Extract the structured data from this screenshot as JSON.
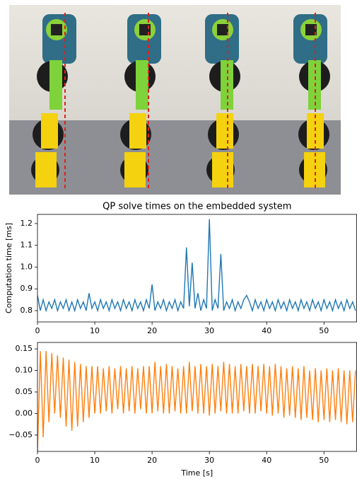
{
  "chart_data": [
    {
      "type": "line",
      "title": "QP solve times on the embedded system",
      "ylabel": "Computation time [ms]",
      "color": "#1f77b4",
      "xlim": [
        0,
        55.7
      ],
      "xticks": [
        0,
        10,
        20,
        30,
        40,
        50
      ],
      "ylim": [
        0.748,
        1.242
      ],
      "yticks": [
        0.8,
        0.9,
        {
          "value": 1.0,
          "label": "1.0"
        },
        1.1,
        1.2
      ],
      "x": [
        0,
        0.5,
        1,
        1.5,
        2,
        2.5,
        3,
        3.5,
        4,
        4.5,
        5,
        5.5,
        6,
        6.5,
        7,
        7.5,
        8,
        8.5,
        9,
        9.5,
        10,
        10.5,
        11,
        11.5,
        12,
        12.5,
        13,
        13.5,
        14,
        14.5,
        15,
        15.5,
        16,
        16.5,
        17,
        17.5,
        18,
        18.5,
        19,
        19.5,
        20,
        20.5,
        21,
        21.5,
        22,
        22.5,
        23,
        23.5,
        24,
        24.5,
        25,
        25.5,
        26,
        26.5,
        27,
        27.5,
        28,
        28.5,
        29,
        29.5,
        30,
        30.5,
        31,
        31.5,
        32,
        32.5,
        33,
        33.5,
        34,
        34.5,
        35,
        35.5,
        36,
        36.5,
        37,
        37.5,
        38,
        38.5,
        39,
        39.5,
        40,
        40.5,
        41,
        41.5,
        42,
        42.5,
        43,
        43.5,
        44,
        44.5,
        45,
        45.5,
        46,
        46.5,
        47,
        47.5,
        48,
        48.5,
        49,
        49.5,
        50,
        50.5,
        51,
        51.5,
        52,
        52.5,
        53,
        53.5,
        54,
        54.5,
        55,
        55.5
      ],
      "values": [
        0.87,
        0.8,
        0.85,
        0.8,
        0.84,
        0.81,
        0.85,
        0.8,
        0.84,
        0.81,
        0.85,
        0.8,
        0.84,
        0.8,
        0.85,
        0.81,
        0.84,
        0.8,
        0.88,
        0.81,
        0.84,
        0.8,
        0.85,
        0.81,
        0.84,
        0.8,
        0.85,
        0.81,
        0.84,
        0.8,
        0.85,
        0.81,
        0.84,
        0.8,
        0.85,
        0.81,
        0.84,
        0.8,
        0.85,
        0.81,
        0.92,
        0.8,
        0.84,
        0.81,
        0.85,
        0.8,
        0.84,
        0.81,
        0.85,
        0.8,
        0.84,
        0.81,
        1.09,
        0.82,
        1.02,
        0.81,
        0.88,
        0.8,
        0.85,
        0.81,
        1.22,
        0.8,
        0.85,
        0.81,
        1.06,
        0.8,
        0.84,
        0.81,
        0.85,
        0.8,
        0.84,
        0.81,
        0.85,
        0.87,
        0.84,
        0.8,
        0.85,
        0.81,
        0.84,
        0.8,
        0.85,
        0.81,
        0.84,
        0.8,
        0.85,
        0.81,
        0.84,
        0.8,
        0.85,
        0.81,
        0.84,
        0.8,
        0.85,
        0.81,
        0.84,
        0.8,
        0.85,
        0.81,
        0.84,
        0.8,
        0.85,
        0.81,
        0.84,
        0.8,
        0.85,
        0.81,
        0.84,
        0.8,
        0.85,
        0.81,
        0.84,
        0.8
      ]
    },
    {
      "type": "line",
      "xlabel": "Time [s]",
      "color": "#ff7f0e",
      "xlim": [
        0,
        55.7
      ],
      "xticks": [
        0,
        10,
        20,
        30,
        40,
        50
      ],
      "ylim": [
        -0.088,
        0.165
      ],
      "yticks": [
        {
          "value": -0.05,
          "label": "−0.05"
        },
        {
          "value": 0,
          "label": "0.00"
        },
        0.05,
        {
          "value": 0.1,
          "label": "0.10"
        },
        0.15
      ],
      "x": [
        0,
        0.5,
        1,
        1.5,
        2,
        2.5,
        3,
        3.5,
        4,
        4.5,
        5,
        5.5,
        6,
        6.5,
        7,
        7.5,
        8,
        8.5,
        9,
        9.5,
        10,
        10.5,
        11,
        11.5,
        12,
        12.5,
        13,
        13.5,
        14,
        14.5,
        15,
        15.5,
        16,
        16.5,
        17,
        17.5,
        18,
        18.5,
        19,
        19.5,
        20,
        20.5,
        21,
        21.5,
        22,
        22.5,
        23,
        23.5,
        24,
        24.5,
        25,
        25.5,
        26,
        26.5,
        27,
        27.5,
        28,
        28.5,
        29,
        29.5,
        30,
        30.5,
        31,
        31.5,
        32,
        32.5,
        33,
        33.5,
        34,
        34.5,
        35,
        35.5,
        36,
        36.5,
        37,
        37.5,
        38,
        38.5,
        39,
        39.5,
        40,
        40.5,
        41,
        41.5,
        42,
        42.5,
        43,
        43.5,
        44,
        44.5,
        45,
        45.5,
        46,
        46.5,
        47,
        47.5,
        48,
        48.5,
        49,
        49.5,
        50,
        50.5,
        51,
        51.5,
        52,
        52.5,
        53,
        53.5,
        54,
        54.5,
        55,
        55.5
      ],
      "values": [
        -0.09,
        0.145,
        -0.055,
        0.145,
        -0.02,
        0.14,
        0.0,
        0.135,
        -0.01,
        0.13,
        -0.03,
        0.125,
        -0.04,
        0.12,
        -0.03,
        0.115,
        -0.02,
        0.11,
        -0.01,
        0.11,
        0.0,
        0.11,
        0.0,
        0.105,
        0.005,
        0.11,
        0.0,
        0.105,
        0.01,
        0.11,
        0.0,
        0.105,
        0.005,
        0.11,
        0.0,
        0.105,
        0.01,
        0.11,
        0.0,
        0.11,
        0.0,
        0.12,
        0.005,
        0.11,
        0.0,
        0.115,
        0.0,
        0.11,
        0.005,
        0.105,
        0.0,
        0.11,
        0.0,
        0.12,
        0.005,
        0.11,
        0.0,
        0.115,
        0.0,
        0.11,
        -0.005,
        0.115,
        0.0,
        0.11,
        0.005,
        0.12,
        0.0,
        0.115,
        0.0,
        0.11,
        0.0,
        0.115,
        0.005,
        0.11,
        0.0,
        0.115,
        0.0,
        0.11,
        0.005,
        0.115,
        0.0,
        0.11,
        -0.005,
        0.115,
        0.0,
        0.11,
        -0.01,
        0.105,
        -0.005,
        0.11,
        -0.01,
        0.105,
        -0.015,
        0.11,
        -0.01,
        0.1,
        -0.015,
        0.105,
        -0.02,
        0.1,
        -0.015,
        0.105,
        -0.02,
        0.1,
        -0.015,
        0.105,
        -0.02,
        0.1,
        -0.025,
        0.1,
        -0.02,
        0.1
      ]
    }
  ]
}
